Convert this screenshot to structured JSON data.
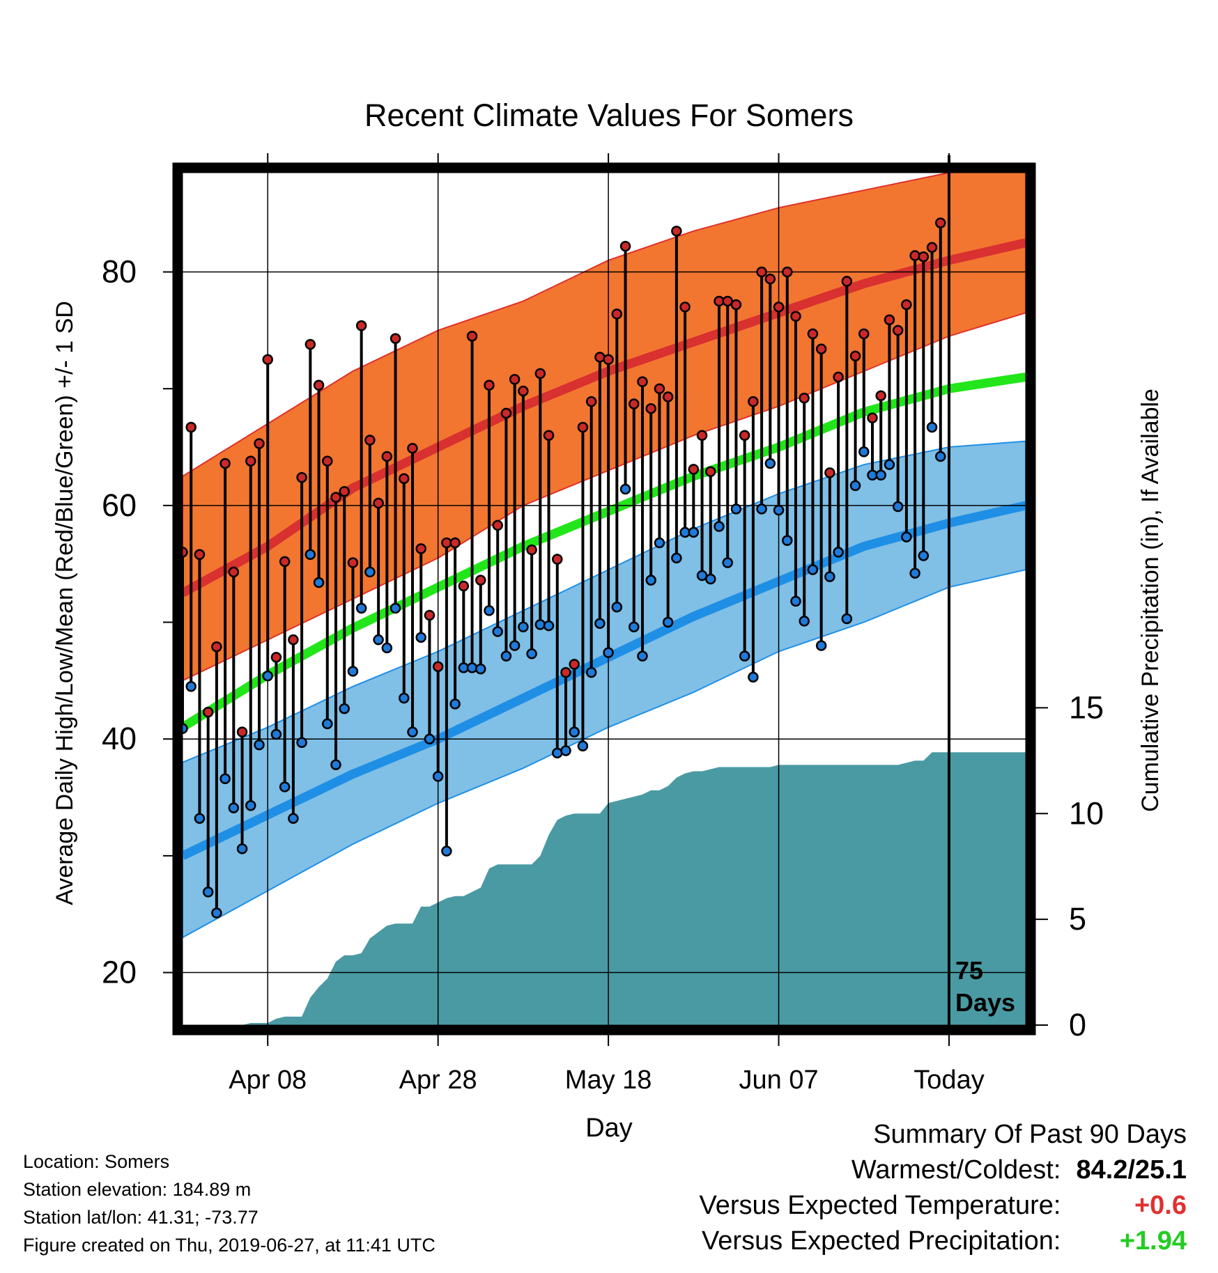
{
  "colors": {
    "high_band": "#f27630",
    "high_band_edge": "#e03028",
    "high_mean": "#d93030",
    "low_band": "#80bfe6",
    "low_band_edge": "#1f8fe6",
    "low_mean": "#1f8fe6",
    "mean": "#22e61a",
    "precip": "#4a9aa4",
    "high_dot": "#cc2828",
    "low_dot": "#1f7ad9",
    "temp_anomaly": "#e03030",
    "precip_anomaly": "#22cc22"
  },
  "info": {
    "location": "Location: Somers",
    "elevation": "Station elevation: 184.89 m",
    "latlon": "Station lat/lon: 41.31; -73.77",
    "created": "Figure created on Thu, 2019-06-27, at 11:41 UTC"
  },
  "summary": {
    "heading": "Summary Of Past 90 Days",
    "warmest_label": "Warmest/Coldest:",
    "warmest_value": "84.2/25.1",
    "temp_label": "Versus Expected Temperature:",
    "temp_value": "+0.6",
    "precip_label": "Versus Expected Precipitation:",
    "precip_value": "+1.94"
  },
  "chart_data": {
    "type": "line",
    "title": "Recent Climate Values For Somers",
    "xlabel": "Day",
    "ylabel": "Average Daily High/Low/Mean (Red/Blue/Green) +/- 1 SD",
    "y2label": "Cumulative Precipitation (in), If Available",
    "x_ticks": [
      {
        "label": "Apr 08",
        "date": "2019-04-08"
      },
      {
        "label": "Apr 28",
        "date": "2019-04-28"
      },
      {
        "label": "May 18",
        "date": "2019-05-18"
      },
      {
        "label": "Jun 07",
        "date": "2019-06-07"
      },
      {
        "label": "Today",
        "date": "2019-06-27"
      }
    ],
    "xlim": [
      "2019-03-29",
      "2019-07-06"
    ],
    "ylim": [
      15.5,
      88.5
    ],
    "y_ticks": [
      20,
      40,
      60,
      80
    ],
    "y2lim": [
      0,
      40.3
    ],
    "y2_ticks": [
      0,
      5,
      10,
      15
    ],
    "today_marker": {
      "date": "2019-06-27",
      "label_line1": "75",
      "label_line2": "Days"
    },
    "normals": {
      "dates": [
        "2019-03-29",
        "2019-04-08",
        "2019-04-18",
        "2019-04-28",
        "2019-05-08",
        "2019-05-18",
        "2019-05-28",
        "2019-06-07",
        "2019-06-17",
        "2019-06-27",
        "2019-07-06"
      ],
      "high_mean": [
        52.5,
        56.5,
        61.5,
        65.0,
        68.5,
        71.5,
        74.0,
        76.5,
        79.0,
        81.0,
        82.5
      ],
      "high_upper": [
        62.5,
        67.0,
        71.5,
        75.0,
        77.5,
        81.0,
        83.5,
        85.5,
        87.0,
        88.5,
        89.0
      ],
      "high_lower": [
        45.0,
        48.5,
        52.0,
        55.5,
        60.0,
        63.0,
        66.0,
        68.5,
        71.5,
        74.5,
        76.5
      ],
      "low_mean": [
        30.0,
        33.5,
        37.0,
        40.0,
        43.5,
        47.0,
        50.5,
        53.5,
        56.5,
        58.5,
        60.0
      ],
      "low_upper": [
        38.0,
        41.0,
        44.5,
        47.5,
        51.0,
        54.5,
        58.0,
        61.0,
        63.5,
        65.0,
        65.5
      ],
      "low_lower": [
        23.0,
        27.0,
        31.0,
        34.5,
        37.5,
        41.0,
        44.0,
        47.5,
        50.0,
        53.0,
        54.5
      ],
      "mean": [
        41.0,
        45.5,
        49.5,
        53.0,
        56.5,
        59.5,
        62.5,
        65.0,
        68.0,
        70.0,
        71.0
      ]
    },
    "series": [
      {
        "name": "High",
        "x": [
          "2019-03-29",
          "2019-03-30",
          "2019-03-31",
          "2019-04-01",
          "2019-04-02",
          "2019-04-03",
          "2019-04-04",
          "2019-04-05",
          "2019-04-06",
          "2019-04-07",
          "2019-04-08",
          "2019-04-09",
          "2019-04-10",
          "2019-04-11",
          "2019-04-12",
          "2019-04-13",
          "2019-04-14",
          "2019-04-15",
          "2019-04-16",
          "2019-04-17",
          "2019-04-18",
          "2019-04-19",
          "2019-04-20",
          "2019-04-21",
          "2019-04-22",
          "2019-04-23",
          "2019-04-24",
          "2019-04-25",
          "2019-04-26",
          "2019-04-27",
          "2019-04-28",
          "2019-04-29",
          "2019-04-30",
          "2019-05-01",
          "2019-05-02",
          "2019-05-03",
          "2019-05-04",
          "2019-05-05",
          "2019-05-06",
          "2019-05-07",
          "2019-05-08",
          "2019-05-09",
          "2019-05-10",
          "2019-05-11",
          "2019-05-12",
          "2019-05-13",
          "2019-05-14",
          "2019-05-15",
          "2019-05-16",
          "2019-05-17",
          "2019-05-18",
          "2019-05-19",
          "2019-05-20",
          "2019-05-21",
          "2019-05-22",
          "2019-05-23",
          "2019-05-24",
          "2019-05-25",
          "2019-05-26",
          "2019-05-27",
          "2019-05-28",
          "2019-05-29",
          "2019-05-30",
          "2019-05-31",
          "2019-06-01",
          "2019-06-02",
          "2019-06-03",
          "2019-06-04",
          "2019-06-05",
          "2019-06-06",
          "2019-06-07",
          "2019-06-08",
          "2019-06-09",
          "2019-06-10",
          "2019-06-11",
          "2019-06-12",
          "2019-06-13",
          "2019-06-14",
          "2019-06-15",
          "2019-06-16",
          "2019-06-17",
          "2019-06-18",
          "2019-06-19",
          "2019-06-20",
          "2019-06-21",
          "2019-06-22",
          "2019-06-23",
          "2019-06-24",
          "2019-06-25",
          "2019-06-26"
        ],
        "values": [
          56,
          66.7,
          55.8,
          42.3,
          47.9,
          63.6,
          54.3,
          40.6,
          63.8,
          65.3,
          72.5,
          47,
          55.2,
          48.5,
          62.4,
          73.8,
          70.3,
          63.8,
          60.7,
          61.2,
          55.1,
          75.4,
          65.6,
          60.2,
          64.2,
          74.3,
          62.3,
          64.9,
          56.3,
          50.6,
          46.2,
          56.8,
          56.8,
          53.1,
          74.5,
          53.6,
          70.3,
          58.3,
          67.9,
          70.8,
          69.8,
          56.2,
          71.3,
          66,
          55.4,
          45.7,
          46.4,
          66.7,
          68.9,
          72.7,
          72.5,
          76.4,
          82.2,
          68.7,
          70.6,
          68.3,
          70,
          69.3,
          83.5,
          77,
          63.1,
          66,
          62.9,
          77.5,
          77.5,
          77.2,
          66,
          68.9,
          80,
          79.4,
          77,
          80,
          76.2,
          69.2,
          74.7,
          73.4,
          62.8,
          71,
          79.2,
          72.8,
          74.7,
          67.5,
          69.4,
          75.9,
          75,
          77.2,
          81.4,
          81.3,
          82.1,
          84.2
        ]
      },
      {
        "name": "Low",
        "x": [
          "2019-03-29",
          "2019-03-30",
          "2019-03-31",
          "2019-04-01",
          "2019-04-02",
          "2019-04-03",
          "2019-04-04",
          "2019-04-05",
          "2019-04-06",
          "2019-04-07",
          "2019-04-08",
          "2019-04-09",
          "2019-04-10",
          "2019-04-11",
          "2019-04-12",
          "2019-04-13",
          "2019-04-14",
          "2019-04-15",
          "2019-04-16",
          "2019-04-17",
          "2019-04-18",
          "2019-04-19",
          "2019-04-20",
          "2019-04-21",
          "2019-04-22",
          "2019-04-23",
          "2019-04-24",
          "2019-04-25",
          "2019-04-26",
          "2019-04-27",
          "2019-04-28",
          "2019-04-29",
          "2019-04-30",
          "2019-05-01",
          "2019-05-02",
          "2019-05-03",
          "2019-05-04",
          "2019-05-05",
          "2019-05-06",
          "2019-05-07",
          "2019-05-08",
          "2019-05-09",
          "2019-05-10",
          "2019-05-11",
          "2019-05-12",
          "2019-05-13",
          "2019-05-14",
          "2019-05-15",
          "2019-05-16",
          "2019-05-17",
          "2019-05-18",
          "2019-05-19",
          "2019-05-20",
          "2019-05-21",
          "2019-05-22",
          "2019-05-23",
          "2019-05-24",
          "2019-05-25",
          "2019-05-26",
          "2019-05-27",
          "2019-05-28",
          "2019-05-29",
          "2019-05-30",
          "2019-05-31",
          "2019-06-01",
          "2019-06-02",
          "2019-06-03",
          "2019-06-04",
          "2019-06-05",
          "2019-06-06",
          "2019-06-07",
          "2019-06-08",
          "2019-06-09",
          "2019-06-10",
          "2019-06-11",
          "2019-06-12",
          "2019-06-13",
          "2019-06-14",
          "2019-06-15",
          "2019-06-16",
          "2019-06-17",
          "2019-06-18",
          "2019-06-19",
          "2019-06-20",
          "2019-06-21",
          "2019-06-22",
          "2019-06-23",
          "2019-06-24",
          "2019-06-25",
          "2019-06-26"
        ],
        "values": [
          40.9,
          44.5,
          33.2,
          26.9,
          25.1,
          36.6,
          34.1,
          30.6,
          34.3,
          39.5,
          45.4,
          40.4,
          35.9,
          33.2,
          39.7,
          55.8,
          53.4,
          41.3,
          37.8,
          42.6,
          45.8,
          51.2,
          54.3,
          48.5,
          47.8,
          51.2,
          43.5,
          40.6,
          48.7,
          40,
          36.8,
          30.4,
          43,
          46.1,
          46.1,
          46,
          51,
          49.2,
          47.1,
          48,
          49.6,
          47.3,
          49.8,
          49.7,
          38.8,
          39,
          40.6,
          39.4,
          45.7,
          49.9,
          47.4,
          51.3,
          61.4,
          49.6,
          47.1,
          53.6,
          56.8,
          50,
          55.5,
          57.7,
          57.7,
          54,
          53.7,
          58.2,
          55.1,
          59.7,
          47.1,
          45.3,
          59.7,
          63.6,
          59.6,
          57,
          51.8,
          50.1,
          54.5,
          48,
          53.9,
          56,
          50.3,
          61.7,
          64.6,
          62.6,
          62.6,
          63.5,
          59.9,
          57.3,
          54.2,
          55.7,
          66.7,
          64.2
        ]
      }
    ],
    "precip": {
      "x": [
        "2019-03-29",
        "2019-04-04",
        "2019-04-05",
        "2019-04-06",
        "2019-04-07",
        "2019-04-08",
        "2019-04-09",
        "2019-04-10",
        "2019-04-11",
        "2019-04-12",
        "2019-04-13",
        "2019-04-14",
        "2019-04-15",
        "2019-04-16",
        "2019-04-17",
        "2019-04-18",
        "2019-04-19",
        "2019-04-20",
        "2019-04-21",
        "2019-04-22",
        "2019-04-23",
        "2019-04-24",
        "2019-04-25",
        "2019-04-26",
        "2019-04-27",
        "2019-04-28",
        "2019-04-29",
        "2019-04-30",
        "2019-05-01",
        "2019-05-02",
        "2019-05-03",
        "2019-05-04",
        "2019-05-05",
        "2019-05-06",
        "2019-05-07",
        "2019-05-08",
        "2019-05-09",
        "2019-05-10",
        "2019-05-11",
        "2019-05-12",
        "2019-05-13",
        "2019-05-14",
        "2019-05-15",
        "2019-05-16",
        "2019-05-17",
        "2019-05-18",
        "2019-05-19",
        "2019-05-20",
        "2019-05-21",
        "2019-05-22",
        "2019-05-23",
        "2019-05-24",
        "2019-05-25",
        "2019-05-26",
        "2019-05-27",
        "2019-05-28",
        "2019-05-29",
        "2019-05-30",
        "2019-05-31",
        "2019-06-01",
        "2019-06-02",
        "2019-06-03",
        "2019-06-04",
        "2019-06-05",
        "2019-06-06",
        "2019-06-07",
        "2019-06-08",
        "2019-06-17",
        "2019-06-18",
        "2019-06-19",
        "2019-06-20",
        "2019-06-21",
        "2019-06-22",
        "2019-06-23",
        "2019-06-24",
        "2019-06-25",
        "2019-06-26",
        "2019-06-27",
        "2019-07-06"
      ],
      "values": [
        0,
        0,
        0,
        0.1,
        0.1,
        0.1,
        0.3,
        0.4,
        0.4,
        0.4,
        1.3,
        1.8,
        2.2,
        3,
        3.3,
        3.3,
        3.4,
        4.1,
        4.4,
        4.7,
        4.8,
        4.8,
        4.8,
        5.6,
        5.6,
        5.8,
        6,
        6.1,
        6.1,
        6.3,
        6.5,
        7.4,
        7.6,
        7.6,
        7.6,
        7.6,
        7.6,
        8.0,
        9.0,
        9.7,
        9.9,
        10.0,
        10.0,
        10.0,
        10.0,
        10.5,
        10.6,
        10.7,
        10.8,
        10.9,
        11.1,
        11.1,
        11.3,
        11.7,
        11.9,
        12.0,
        12.0,
        12.1,
        12.2,
        12.2,
        12.2,
        12.2,
        12.2,
        12.2,
        12.2,
        12.3,
        12.3,
        12.3,
        12.3,
        12.3,
        12.3,
        12.3,
        12.4,
        12.5,
        12.5,
        12.9,
        12.9,
        12.9,
        12.9
      ]
    }
  }
}
